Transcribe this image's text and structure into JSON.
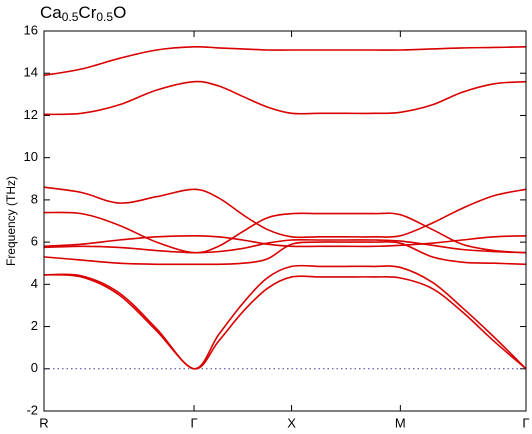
{
  "chart_data": {
    "type": "line",
    "title": [
      "Ca",
      "0.5",
      "Cr",
      "0.5",
      "O"
    ],
    "ylabel": "Frequency (THz)",
    "x": [
      0,
      0.2,
      0.4,
      0.6,
      0.8,
      0.93,
      1.06,
      1.19,
      1.32,
      1.47,
      1.61,
      1.76,
      1.9,
      2.07,
      2.23,
      2.4,
      2.57
    ],
    "xlim": [
      0,
      2.57
    ],
    "xticks": [
      {
        "value": 0,
        "label": "R"
      },
      {
        "value": 0.8,
        "label": "Γ"
      },
      {
        "value": 1.32,
        "label": "X"
      },
      {
        "value": 1.9,
        "label": "M"
      },
      {
        "value": 2.57,
        "label": "Γ"
      }
    ],
    "ylim": [
      -2,
      16
    ],
    "yticks": [
      -2,
      0,
      2,
      4,
      6,
      8,
      10,
      12,
      14,
      16
    ],
    "zero_line": true,
    "series": [
      {
        "color": "#d90000",
        "values": [
          13.9,
          14.2,
          14.7,
          15.1,
          15.25,
          15.2,
          15.15,
          15.1,
          15.1,
          15.1,
          15.1,
          15.1,
          15.1,
          15.15,
          15.2,
          15.22,
          15.25
        ]
      },
      {
        "color": "#d90000",
        "values": [
          12.05,
          12.1,
          12.5,
          13.2,
          13.6,
          13.4,
          12.9,
          12.4,
          12.1,
          12.1,
          12.1,
          12.1,
          12.15,
          12.5,
          13.1,
          13.5,
          13.6
        ]
      },
      {
        "color": "#d90000",
        "values": [
          8.6,
          8.35,
          7.85,
          8.15,
          8.5,
          8.1,
          7.3,
          6.6,
          6.25,
          6.25,
          6.25,
          6.25,
          6.3,
          6.9,
          7.6,
          8.2,
          8.5
        ]
      },
      {
        "color": "#d90000",
        "values": [
          7.4,
          7.35,
          6.8,
          6.0,
          5.5,
          5.8,
          6.5,
          7.15,
          7.35,
          7.35,
          7.35,
          7.35,
          7.3,
          6.6,
          5.9,
          5.6,
          5.5
        ]
      },
      {
        "color": "#d90000",
        "values": [
          5.8,
          5.9,
          6.1,
          6.25,
          6.3,
          6.25,
          6.1,
          5.9,
          5.8,
          5.8,
          5.8,
          5.8,
          5.85,
          5.95,
          6.1,
          6.25,
          6.3
        ]
      },
      {
        "color": "#d90000",
        "values": [
          5.75,
          5.8,
          5.75,
          5.6,
          5.5,
          5.55,
          5.7,
          5.95,
          6.1,
          6.1,
          6.1,
          6.1,
          6.05,
          5.85,
          5.65,
          5.55,
          5.5
        ]
      },
      {
        "color": "#d90000",
        "values": [
          5.3,
          5.15,
          5.0,
          4.95,
          4.95,
          4.95,
          5.0,
          5.2,
          5.9,
          6.0,
          6.0,
          6.0,
          5.95,
          5.3,
          5.05,
          5.0,
          4.95
        ]
      },
      {
        "color": "#d90000",
        "values": [
          4.45,
          4.4,
          3.6,
          1.9,
          0,
          1.6,
          3.1,
          4.3,
          4.85,
          4.85,
          4.85,
          4.85,
          4.8,
          4.1,
          2.9,
          1.5,
          0
        ]
      },
      {
        "color": "#d90000",
        "values": [
          4.45,
          4.35,
          3.5,
          1.8,
          0,
          1.3,
          2.7,
          3.8,
          4.35,
          4.35,
          4.35,
          4.35,
          4.3,
          3.8,
          2.7,
          1.3,
          0
        ]
      }
    ]
  }
}
